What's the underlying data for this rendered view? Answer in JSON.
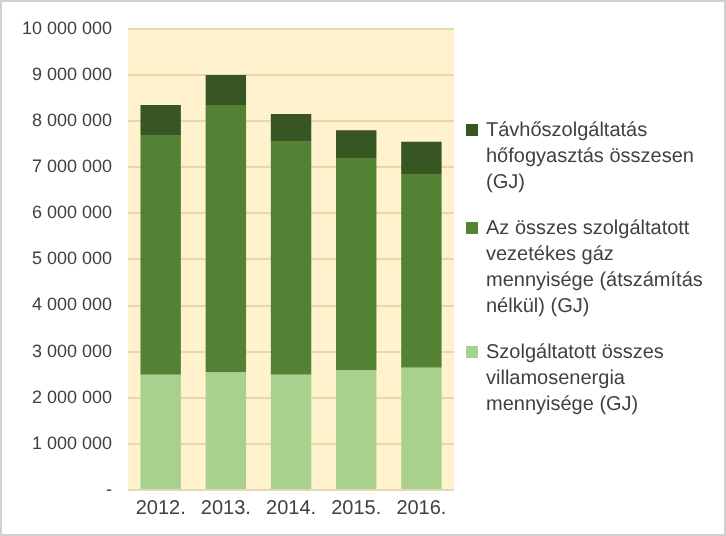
{
  "chart_data": {
    "type": "bar",
    "stacked": true,
    "categories": [
      "2012.",
      "2013.",
      "2014.",
      "2015.",
      "2016."
    ],
    "series": [
      {
        "name": "Szolgáltatott összes villamosenergia mennyisége (GJ)",
        "color": "#a9d18e",
        "values": [
          2500000,
          2550000,
          2500000,
          2600000,
          2650000
        ]
      },
      {
        "name": "Az összes szolgáltatott vezetékes gáz mennyisége (átszámítás nélkül) (GJ)",
        "color": "#548235",
        "values": [
          5200000,
          5800000,
          5050000,
          4600000,
          4200000
        ]
      },
      {
        "name": "Távhőszolgáltatás hőfogyasztás összesen (GJ)",
        "color": "#375623",
        "values": [
          650000,
          650000,
          600000,
          600000,
          700000
        ]
      }
    ],
    "ylim": [
      0,
      10000000
    ],
    "yticks": [
      {
        "value": 0,
        "label": "-"
      },
      {
        "value": 1000000,
        "label": "1 000 000"
      },
      {
        "value": 2000000,
        "label": "2 000 000"
      },
      {
        "value": 3000000,
        "label": "3 000 000"
      },
      {
        "value": 4000000,
        "label": "4 000 000"
      },
      {
        "value": 5000000,
        "label": "5 000 000"
      },
      {
        "value": 6000000,
        "label": "6 000 000"
      },
      {
        "value": 7000000,
        "label": "7 000 000"
      },
      {
        "value": 8000000,
        "label": "8 000 000"
      },
      {
        "value": 9000000,
        "label": "9 000 000"
      },
      {
        "value": 10000000,
        "label": "10 000 000"
      }
    ],
    "grid": "y",
    "legend": "right"
  }
}
